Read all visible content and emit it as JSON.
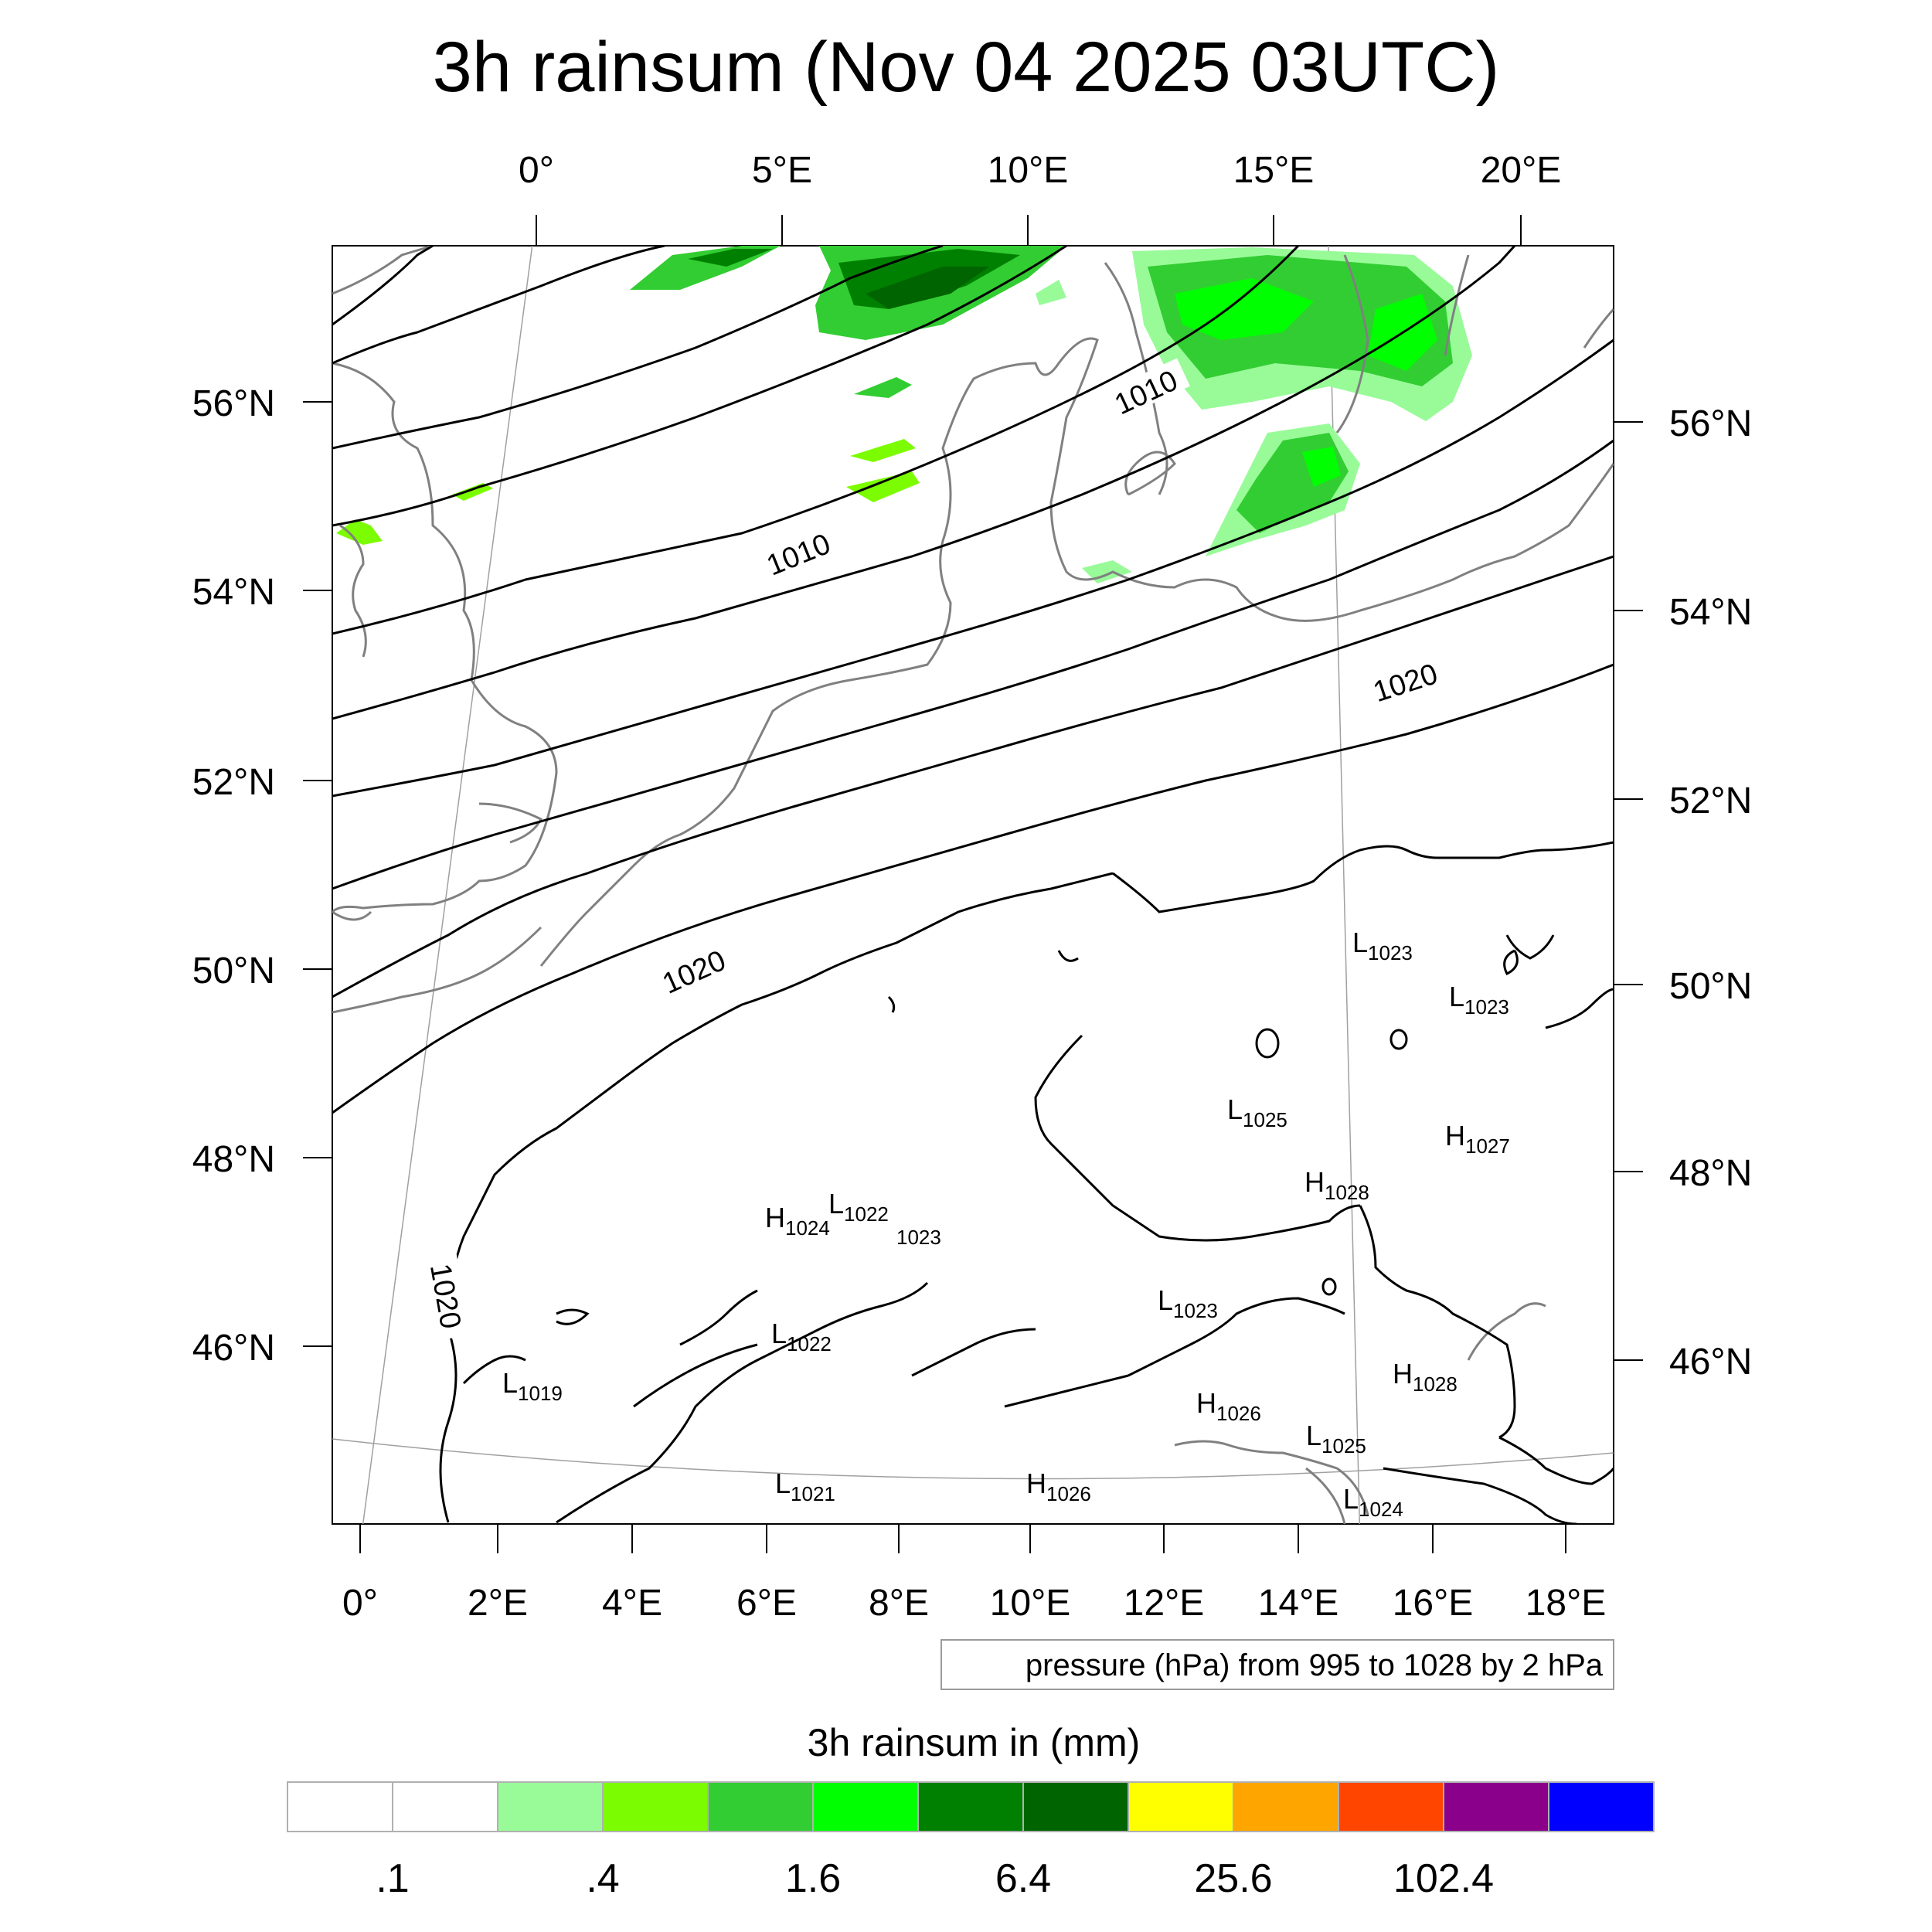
{
  "title": "3h rainsum (Nov 04 2025 03UTC)",
  "top_lon_ticks": [
    "0°",
    "5°E",
    "10°E",
    "15°E",
    "20°E"
  ],
  "bottom_lon_ticks": [
    "0°",
    "2°E",
    "4°E",
    "6°E",
    "8°E",
    "10°E",
    "12°E",
    "14°E",
    "16°E",
    "18°E"
  ],
  "left_lat_ticks": [
    "56°N",
    "54°N",
    "52°N",
    "50°N",
    "48°N",
    "46°N"
  ],
  "right_lat_ticks": [
    "56°N",
    "54°N",
    "52°N",
    "50°N",
    "48°N",
    "46°N"
  ],
  "contour_labels": [
    "1010",
    "1010",
    "1020",
    "1020",
    "1020"
  ],
  "pressure_centers": [
    {
      "letter": "L",
      "value": "1023"
    },
    {
      "letter": "L",
      "value": "1023"
    },
    {
      "letter": "L",
      "value": "1025"
    },
    {
      "letter": "H",
      "value": "1027"
    },
    {
      "letter": "H",
      "value": "1028"
    },
    {
      "letter": "H",
      "value": "1024"
    },
    {
      "letter": "L",
      "value": "1022"
    },
    {
      "letter": "",
      "value": "1023"
    },
    {
      "letter": "L",
      "value": "1023"
    },
    {
      "letter": "L",
      "value": "1022"
    },
    {
      "letter": "L",
      "value": "1019"
    },
    {
      "letter": "H",
      "value": "1028"
    },
    {
      "letter": "H",
      "value": "1026"
    },
    {
      "letter": "L",
      "value": "1025"
    },
    {
      "letter": "L",
      "value": "1021"
    },
    {
      "letter": "H",
      "value": "1026"
    },
    {
      "letter": "L",
      "value": "1024"
    }
  ],
  "contour_note": "pressure (hPa) from 995 to 1028 by 2 hPa",
  "colorbar": {
    "title": "3h rainsum in (mm)",
    "colors": [
      "#ffffff",
      "#ffffff",
      "#98fb98",
      "#7cfc00",
      "#32cd32",
      "#00ff00",
      "#008000",
      "#006400",
      "#ffff00",
      "#ffa500",
      "#ff4500",
      "#8b008b",
      "#0000ff"
    ],
    "labels": [
      ".1",
      ".4",
      "1.6",
      "6.4",
      "25.6",
      "102.4"
    ]
  },
  "colors": {
    "contour": "#000000",
    "coastline": "#808080",
    "graticule": "#a0a0a0"
  }
}
